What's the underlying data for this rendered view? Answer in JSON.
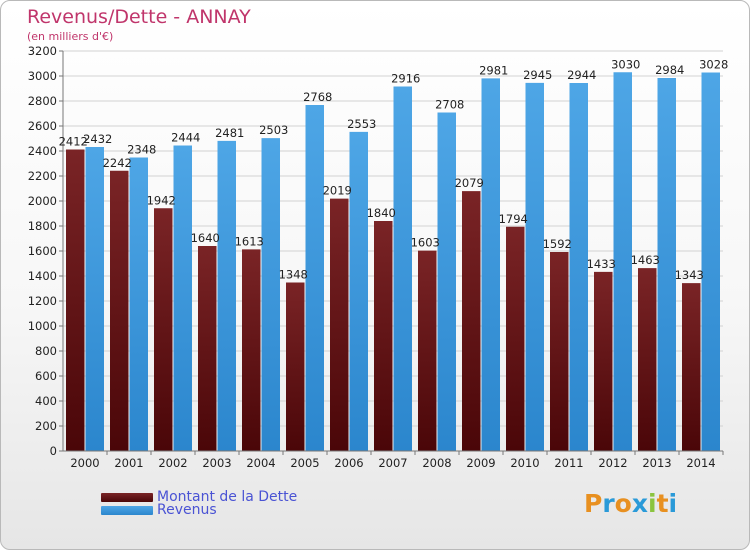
{
  "header": {
    "title": "Revenus/Dette - ANNAY",
    "subtitle": "(en milliers d'€)"
  },
  "colors": {
    "debt": "#7a2426",
    "debt_dark": "#4a0608",
    "revenue": "#4ea6e6",
    "revenue_dark": "#2b86cd",
    "title": "#c0356b",
    "legend_text": "#4a53d4",
    "grid": "#d2d2d2"
  },
  "chart_data": {
    "type": "bar",
    "title": "Revenus/Dette - ANNAY",
    "subtitle": "(en milliers d'€)",
    "categories": [
      "2000",
      "2001",
      "2002",
      "2003",
      "2004",
      "2005",
      "2006",
      "2007",
      "2008",
      "2009",
      "2010",
      "2011",
      "2012",
      "2013",
      "2014"
    ],
    "series": [
      {
        "name": "Montant de la Dette",
        "values": [
          2412,
          2242,
          1942,
          1640,
          1613,
          1348,
          2019,
          1840,
          1603,
          2079,
          1794,
          1592,
          1433,
          1463,
          1343
        ]
      },
      {
        "name": "Revenus",
        "values": [
          2432,
          2348,
          2444,
          2481,
          2503,
          2768,
          2553,
          2916,
          2708,
          2981,
          2945,
          2944,
          3030,
          2984,
          3028
        ]
      }
    ],
    "value_labels": [
      [
        "2412",
        "2242",
        "1942",
        "1640",
        "1613",
        "1348",
        "2019",
        "1840",
        "1603",
        "2079",
        "1794",
        "1592",
        "1433",
        "1463",
        "1343"
      ],
      [
        "2432",
        "2348",
        "2444",
        "2481",
        "2503",
        "2768",
        "2553",
        "2916",
        "2708",
        "2981",
        "2945",
        "2944",
        "3030",
        "2984",
        "3028"
      ]
    ],
    "yticks": [
      0,
      200,
      400,
      600,
      800,
      1000,
      1200,
      1400,
      1600,
      1800,
      2000,
      2200,
      2400,
      2600,
      2800,
      3000,
      3200
    ],
    "ylim": [
      0,
      3200
    ],
    "grid": true,
    "legend_position": "bottom-left"
  },
  "legend": {
    "debt_label": "Montant de la Dette",
    "revenue_label": "Revenus"
  },
  "logo": {
    "letters": [
      "P",
      "r",
      "o",
      "x",
      "i",
      "t",
      "i"
    ],
    "letter_colors": [
      "#e89020",
      "#2a9ad8",
      "#e89020",
      "#2a9ad8",
      "#8bc43f",
      "#e89020",
      "#2a9ad8"
    ]
  }
}
